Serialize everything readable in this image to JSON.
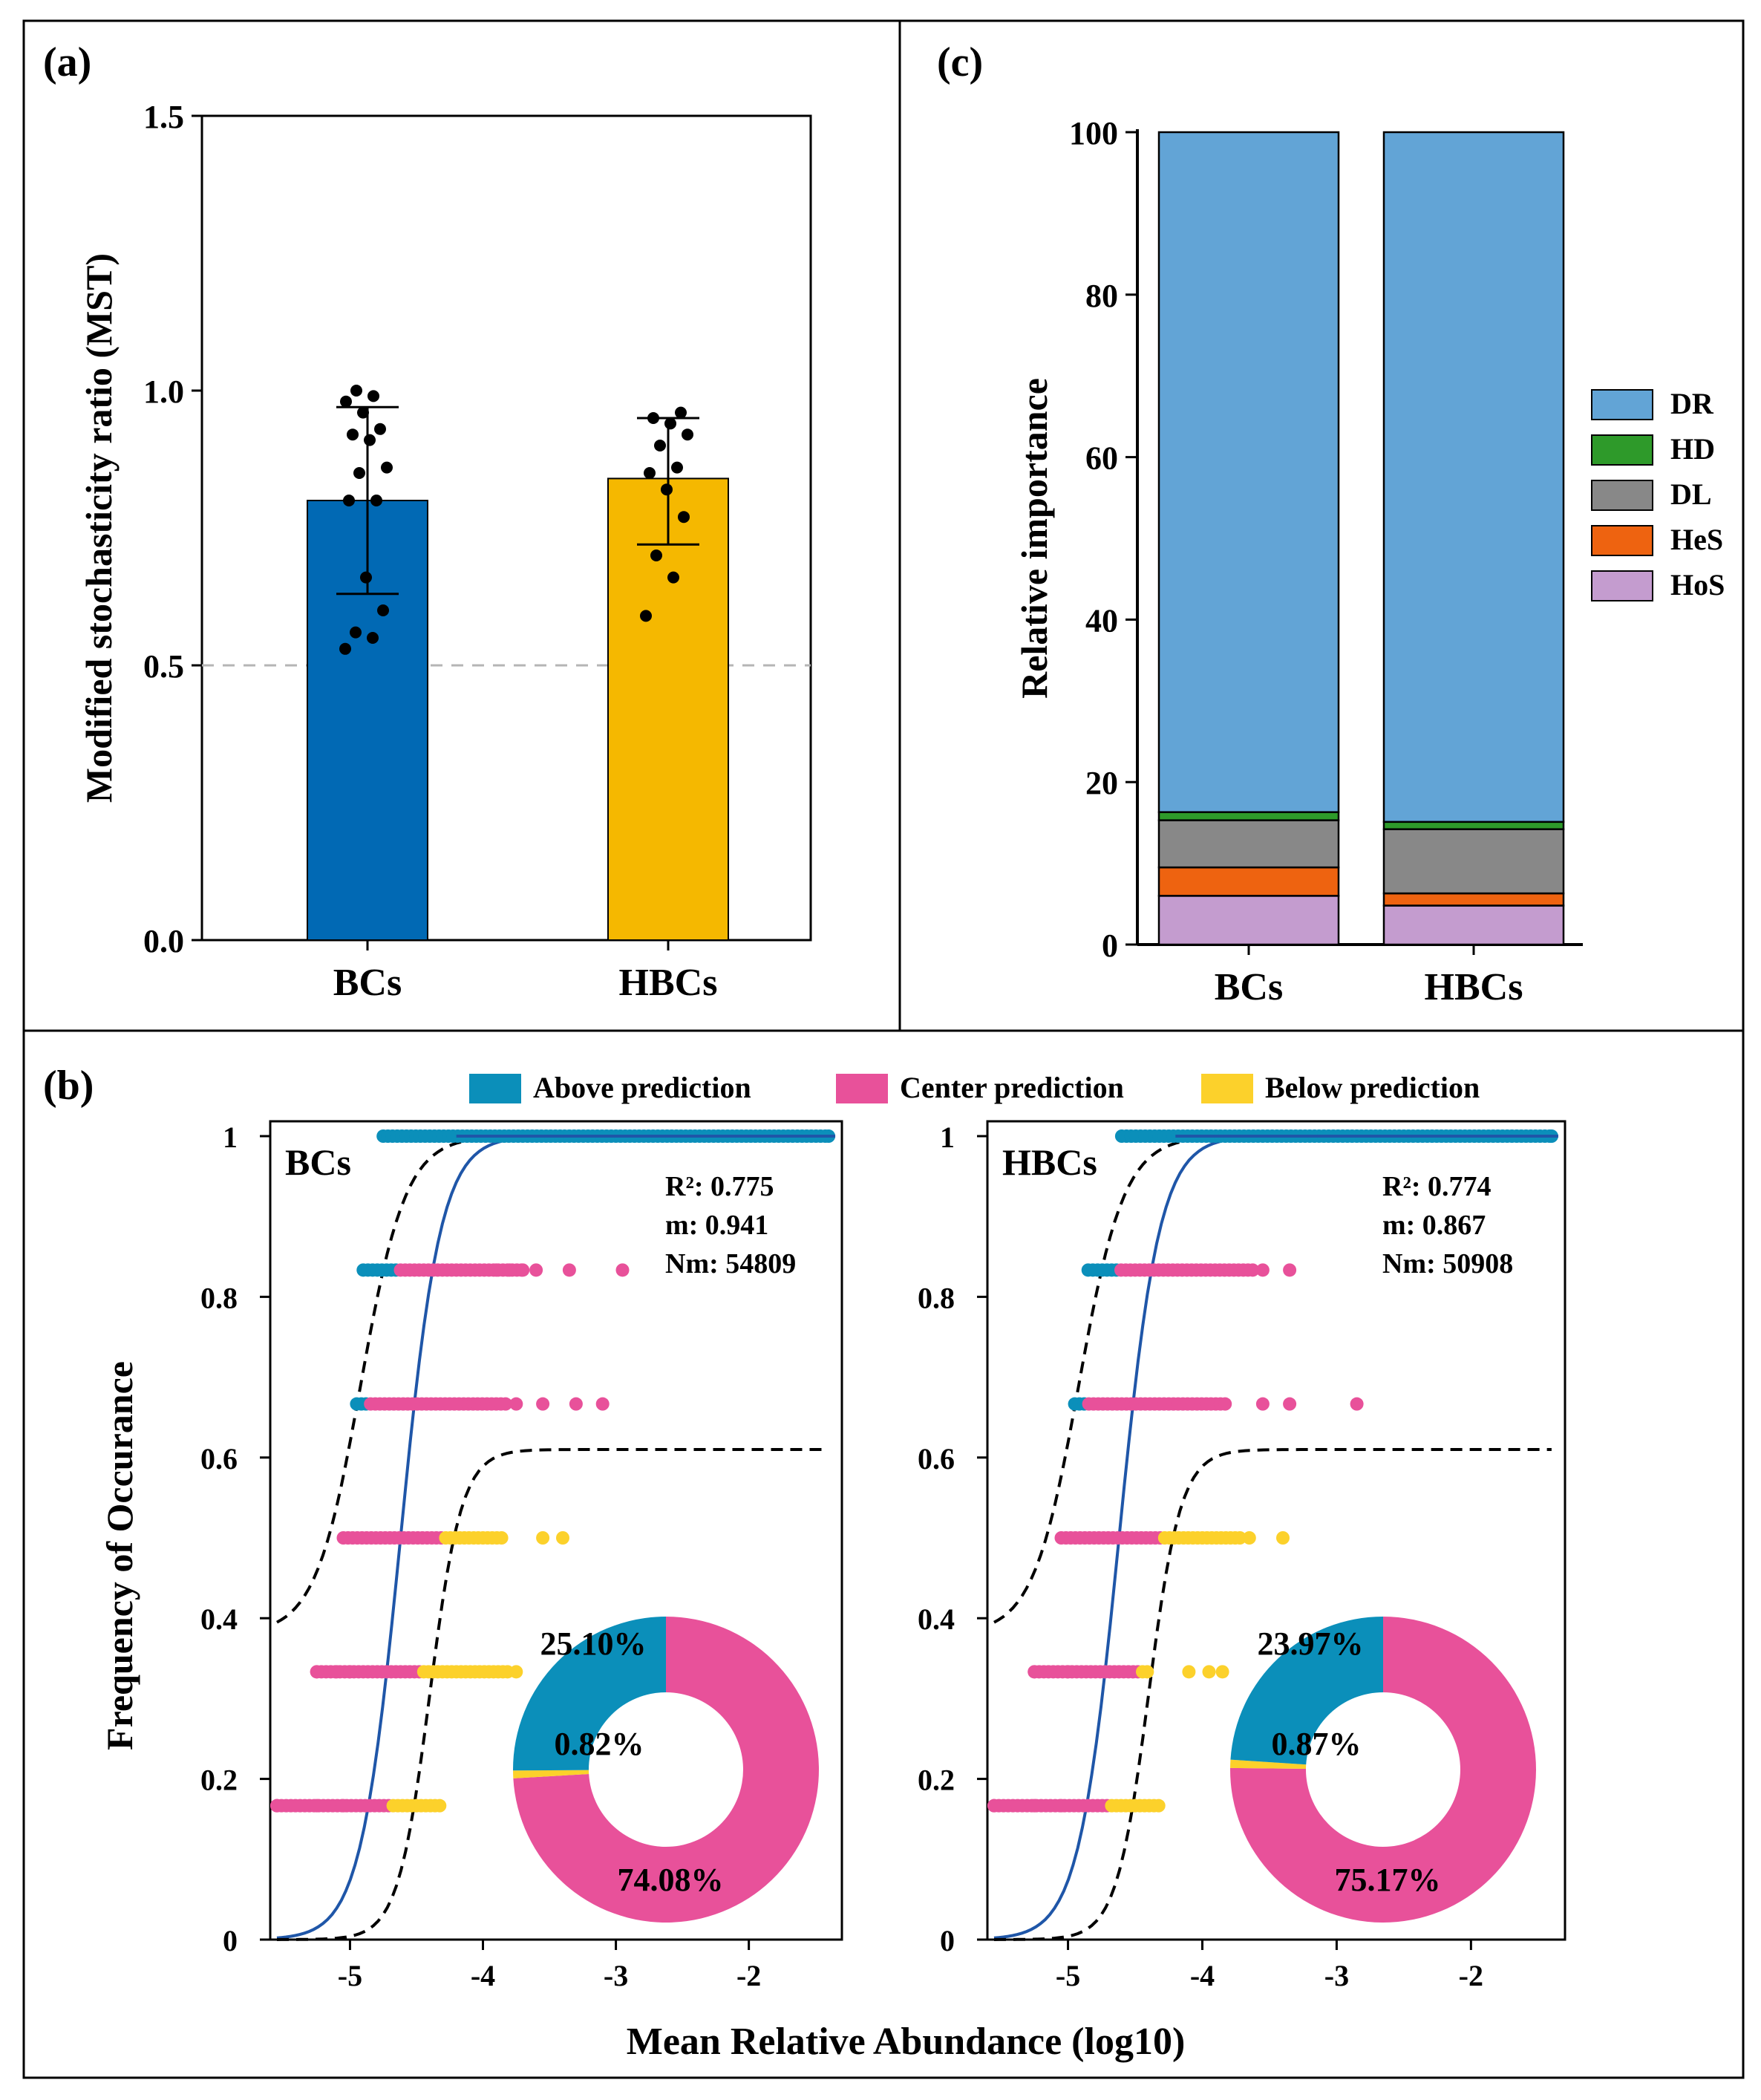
{
  "panels": {
    "a": {
      "label": "(a)",
      "chart_data": {
        "type": "bar",
        "title": "",
        "xlabel": "",
        "ylabel": "Modified stochasticity ratio (MST)",
        "ylim": [
          0,
          1.5
        ],
        "yticks": [
          "0.0",
          "0.5",
          "1.0",
          "1.5"
        ],
        "reference_line": 0.5,
        "categories": [
          "BCs",
          "HBCs"
        ],
        "values": [
          0.8,
          0.84
        ],
        "error_low": [
          0.63,
          0.72
        ],
        "error_high": [
          0.97,
          0.95
        ],
        "colors": [
          "#0169b4",
          "#f5b800"
        ],
        "points": [
          [
            0.53,
            0.55,
            0.56,
            0.6,
            0.66,
            0.8,
            0.8,
            0.85,
            0.86,
            0.91,
            0.92,
            0.93,
            0.96,
            0.98,
            0.99,
            1.0
          ],
          [
            0.59,
            0.66,
            0.7,
            0.77,
            0.82,
            0.85,
            0.86,
            0.9,
            0.92,
            0.94,
            0.95,
            0.96
          ]
        ]
      }
    },
    "c": {
      "label": "(c)",
      "chart_data": {
        "type": "bar",
        "stacked": true,
        "title": "",
        "xlabel": "",
        "ylabel": "Relative importance",
        "ylim": [
          0,
          100
        ],
        "yticks": [
          "0",
          "20",
          "40",
          "60",
          "80",
          "100"
        ],
        "categories": [
          "BCs",
          "HBCs"
        ],
        "series": [
          {
            "name": "HoS",
            "color": "#c49ccf",
            "values": [
              6.0,
              4.8
            ]
          },
          {
            "name": "HeS",
            "color": "#ee6310",
            "values": [
              3.5,
              1.5
            ]
          },
          {
            "name": "DL",
            "color": "#888888",
            "values": [
              5.8,
              7.9
            ]
          },
          {
            "name": "HD",
            "color": "#2e9a2a",
            "values": [
              1.0,
              0.9
            ]
          },
          {
            "name": "DR",
            "color": "#62a4d6",
            "values": [
              83.7,
              84.9
            ]
          }
        ],
        "legend": [
          "DR",
          "HD",
          "DL",
          "HeS",
          "HoS"
        ],
        "legend_position": "right"
      }
    },
    "b": {
      "label": "(b)",
      "legend": [
        {
          "name": "Above prediction",
          "color": "#0b8fba"
        },
        {
          "name": "Center prediction",
          "color": "#e8519a"
        },
        {
          "name": "Below prediction",
          "color": "#fcd12b"
        }
      ],
      "ylabel": "Frequency of Occurance",
      "xlabel": "Mean Relative Abundance (log10)",
      "yticks": [
        "0",
        "0.2",
        "0.4",
        "0.6",
        "0.8",
        "1"
      ],
      "xticks": [
        "-5",
        "-4",
        "-3",
        "-2"
      ],
      "chart_data": [
        {
          "type": "scatter",
          "name": "BCs",
          "xlim": [
            -5.6,
            -1.3
          ],
          "ylim": [
            0,
            1
          ],
          "stats": [
            "R²: 0.775",
            "m: 0.941",
            "Nm: 54809"
          ],
          "rows": [
            {
              "y": 1.0,
              "min": -4.75,
              "max": -1.4,
              "split_above_to": -1.4,
              "extra": [
                -1.4
              ]
            },
            {
              "y": 0.8333,
              "min": -4.9,
              "max": -3.7,
              "above_to": -4.65,
              "extra": [
                -3.9,
                -3.8,
                -3.7,
                -3.6,
                -3.35,
                -2.95
              ]
            },
            {
              "y": 0.6667,
              "min": -4.95,
              "max": -3.8,
              "above_to": -4.88,
              "extra": [
                -3.75,
                -3.55,
                -3.3,
                -3.1
              ]
            },
            {
              "y": 0.5,
              "min": -5.05,
              "max": -3.85,
              "below_from": -4.3,
              "extra": [
                -3.55,
                -3.4
              ]
            },
            {
              "y": 0.3333,
              "min": -5.25,
              "max": -3.8,
              "below_from": -4.45,
              "extra": [
                -5.25,
                -5.1,
                -5.0,
                -3.75
              ]
            },
            {
              "y": 0.1667,
              "min": -5.55,
              "max": -4.3,
              "below_from": -4.7,
              "extra": [
                -5.55,
                -5.25,
                -5.05
              ]
            }
          ],
          "donut": [
            {
              "name": "Center prediction",
              "label": "74.08%",
              "value": 74.08
            },
            {
              "name": "Below prediction",
              "label": "0.82%",
              "value": 0.82
            },
            {
              "name": "Above prediction",
              "label": "25.10%",
              "value": 25.1
            }
          ]
        },
        {
          "type": "scatter",
          "name": "HBCs",
          "xlim": [
            -5.6,
            -1.3
          ],
          "ylim": [
            0,
            1
          ],
          "stats": [
            "R²: 0.774",
            "m: 0.867",
            "Nm: 50908"
          ],
          "rows": [
            {
              "y": 1.0,
              "min": -4.6,
              "max": -1.4,
              "split_above_to": -1.4,
              "extra": [
                -1.4
              ]
            },
            {
              "y": 0.8333,
              "min": -4.85,
              "max": -3.6,
              "above_to": -4.62,
              "extra": [
                -3.55,
                -3.35
              ]
            },
            {
              "y": 0.6667,
              "min": -4.95,
              "max": -3.8,
              "above_to": -4.85,
              "extra": [
                -3.55,
                -3.35,
                -2.85
              ]
            },
            {
              "y": 0.5,
              "min": -5.05,
              "max": -3.7,
              "below_from": -4.3,
              "extra": [
                -3.65,
                -3.4
              ]
            },
            {
              "y": 0.3333,
              "min": -5.25,
              "max": -4.4,
              "below_from": -4.45,
              "extra": [
                -5.25,
                -5.0,
                -4.1,
                -3.95,
                -3.85
              ]
            },
            {
              "y": 0.1667,
              "min": -5.55,
              "max": -4.3,
              "below_from": -4.7,
              "extra": [
                -5.55,
                -5.25,
                -5.05
              ]
            }
          ],
          "donut": [
            {
              "name": "Center prediction",
              "label": "75.17%",
              "value": 75.17
            },
            {
              "name": "Below prediction",
              "label": "0.87%",
              "value": 0.87
            },
            {
              "name": "Above prediction",
              "label": "23.97%",
              "value": 23.97
            }
          ]
        }
      ]
    }
  }
}
